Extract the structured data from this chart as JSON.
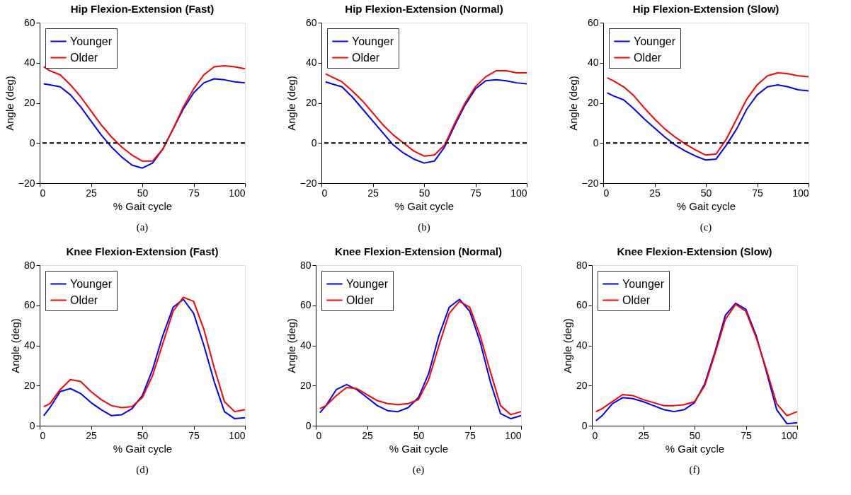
{
  "chart_data": [
    {
      "type": "line",
      "title": "Hip Flexion-Extension (Fast)",
      "xlabel": "% Gait cycle",
      "ylabel": "Angle (deg)",
      "annotations": [
        "(a)"
      ],
      "legend": "top left",
      "grid": false,
      "line_style": "solid",
      "x": [
        2,
        5,
        10,
        15,
        20,
        25,
        30,
        35,
        40,
        45,
        50,
        55,
        60,
        65,
        70,
        75,
        80,
        85,
        90,
        95,
        100
      ],
      "xlim": [
        0,
        100
      ],
      "xticks": [
        0,
        25,
        50,
        75,
        100
      ],
      "ylim": [
        -20,
        60
      ],
      "yticks": [
        -20,
        0,
        20,
        40,
        60
      ],
      "ref_lines": [
        {
          "axis": "y",
          "value": 0,
          "color": "#000000",
          "line_style": "dashed"
        }
      ],
      "series": [
        {
          "name": "Younger",
          "color": "#0000ff",
          "values": [
            29.5,
            29,
            28,
            24,
            18,
            11,
            4,
            -2,
            -7,
            -11,
            -12.5,
            -10,
            -3,
            7,
            17,
            25,
            30,
            32,
            31.5,
            30.5,
            30
          ]
        },
        {
          "name": "Older",
          "color": "#ff0000",
          "values": [
            38,
            36,
            34,
            29,
            23,
            16,
            9,
            3,
            -2,
            -6,
            -9,
            -9,
            -3,
            7,
            18,
            27,
            34,
            38,
            38.5,
            38,
            37
          ]
        }
      ]
    },
    {
      "type": "line",
      "title": "Hip Flexion-Extension (Normal)",
      "xlabel": "% Gait cycle",
      "ylabel": "Angle (deg)",
      "annotations": [
        "(b)"
      ],
      "legend": "top left",
      "grid": false,
      "line_style": "solid",
      "x": [
        2,
        5,
        10,
        15,
        20,
        25,
        30,
        35,
        40,
        45,
        50,
        55,
        60,
        65,
        70,
        75,
        80,
        85,
        90,
        95,
        100
      ],
      "xlim": [
        0,
        100
      ],
      "xticks": [
        0,
        25,
        50,
        75,
        100
      ],
      "ylim": [
        -20,
        60
      ],
      "yticks": [
        -20,
        0,
        20,
        40,
        60
      ],
      "ref_lines": [
        {
          "axis": "y",
          "value": 0,
          "color": "#000000",
          "line_style": "dashed"
        }
      ],
      "series": [
        {
          "name": "Younger",
          "color": "#0000ff",
          "values": [
            30.5,
            29.5,
            28,
            23,
            17,
            11,
            5,
            -1,
            -5,
            -8,
            -10,
            -9,
            -2,
            9,
            19,
            27,
            31,
            31.5,
            31,
            30,
            29.5
          ]
        },
        {
          "name": "Older",
          "color": "#ff0000",
          "values": [
            34.5,
            33,
            30.5,
            26,
            21,
            15,
            9,
            4,
            0,
            -4,
            -6.5,
            -6,
            -1,
            10,
            20,
            28,
            33,
            36,
            36,
            35,
            35
          ]
        }
      ]
    },
    {
      "type": "line",
      "title": "Hip Flexion-Extension (Slow)",
      "xlabel": "% Gait cycle",
      "ylabel": "Angle (deg)",
      "annotations": [
        "(c)"
      ],
      "legend": "top left",
      "grid": false,
      "line_style": "solid",
      "x": [
        2,
        5,
        10,
        15,
        20,
        25,
        30,
        35,
        40,
        45,
        50,
        55,
        60,
        65,
        70,
        75,
        80,
        85,
        90,
        95,
        100
      ],
      "xlim": [
        0,
        100
      ],
      "xticks": [
        0,
        25,
        50,
        75,
        100
      ],
      "ylim": [
        -20,
        60
      ],
      "yticks": [
        -20,
        0,
        20,
        40,
        60
      ],
      "ref_lines": [
        {
          "axis": "y",
          "value": 0,
          "color": "#000000",
          "line_style": "dashed"
        }
      ],
      "series": [
        {
          "name": "Younger",
          "color": "#0000ff",
          "values": [
            25,
            23.5,
            21.5,
            17,
            12,
            7.5,
            3,
            -1,
            -4,
            -6.5,
            -8.5,
            -8,
            -1,
            7,
            17,
            24,
            28,
            29,
            28,
            26.5,
            26
          ]
        },
        {
          "name": "Older",
          "color": "#ff0000",
          "values": [
            32.5,
            31,
            28,
            23.5,
            17.5,
            12,
            7,
            3,
            -0.5,
            -3.5,
            -6,
            -5.5,
            2,
            12,
            22,
            29,
            33.5,
            35,
            34.5,
            33.5,
            33
          ]
        }
      ]
    },
    {
      "type": "line",
      "title": "Knee Flexion-Extension (Fast)",
      "xlabel": "% Gait cycle",
      "ylabel": "Angle (deg)",
      "annotations": [
        "(d)"
      ],
      "legend": "top left",
      "grid": false,
      "line_style": "solid",
      "x": [
        2,
        5,
        10,
        15,
        20,
        25,
        30,
        35,
        40,
        45,
        50,
        55,
        60,
        65,
        70,
        75,
        80,
        85,
        90,
        95,
        100
      ],
      "xlim": [
        0,
        100
      ],
      "xticks": [
        0,
        25,
        50,
        75,
        100
      ],
      "ylim": [
        0,
        80
      ],
      "yticks": [
        0,
        20,
        40,
        60,
        80
      ],
      "series": [
        {
          "name": "Younger",
          "color": "#0000ff",
          "values": [
            5,
            9,
            17,
            18.5,
            16,
            11.5,
            8,
            5,
            5.5,
            8.5,
            15,
            28,
            45,
            59,
            63,
            56,
            40,
            22,
            7,
            3.5,
            4
          ]
        },
        {
          "name": "Older",
          "color": "#ff0000",
          "values": [
            9.5,
            11,
            18,
            23,
            22,
            17,
            13,
            10,
            9,
            9.5,
            14,
            25,
            41,
            57,
            64,
            62,
            48,
            29,
            12,
            7,
            8
          ]
        }
      ]
    },
    {
      "type": "line",
      "title": "Knee Flexion-Extension (Normal)",
      "xlabel": "% Gait cycle",
      "ylabel": "Angle (deg)",
      "annotations": [
        "(e)"
      ],
      "legend": "top left",
      "grid": false,
      "line_style": "solid",
      "x": [
        2,
        5,
        10,
        15,
        20,
        25,
        30,
        35,
        40,
        45,
        50,
        55,
        60,
        65,
        70,
        75,
        80,
        85,
        90,
        95,
        100
      ],
      "xlim": [
        0,
        100
      ],
      "xticks": [
        0,
        25,
        50,
        75,
        100
      ],
      "ylim": [
        0,
        80
      ],
      "yticks": [
        0,
        20,
        40,
        60,
        80
      ],
      "series": [
        {
          "name": "Younger",
          "color": "#0000ff",
          "values": [
            6.5,
            10,
            18,
            20.5,
            18,
            14,
            10,
            7.5,
            7,
            9,
            14,
            26,
            45,
            59,
            63,
            57,
            42,
            22,
            6,
            3.5,
            5
          ]
        },
        {
          "name": "Older",
          "color": "#ff0000",
          "values": [
            8.5,
            10,
            15,
            19,
            18.5,
            15.5,
            12.5,
            11,
            10.5,
            11,
            13,
            23,
            40,
            56,
            62,
            59,
            45,
            27,
            10,
            5.5,
            7
          ]
        }
      ]
    },
    {
      "type": "line",
      "title": "Knee Flexion-Extension (Slow)",
      "xlabel": "% Gait cycle",
      "ylabel": "Angle (deg)",
      "annotations": [
        "(f)"
      ],
      "legend": "top left",
      "grid": false,
      "line_style": "solid",
      "x": [
        2,
        5,
        10,
        15,
        20,
        25,
        30,
        35,
        40,
        45,
        50,
        55,
        60,
        65,
        70,
        75,
        80,
        85,
        90,
        95,
        100
      ],
      "xlim": [
        0,
        100
      ],
      "xticks": [
        0,
        25,
        50,
        75,
        100
      ],
      "ylim": [
        0,
        80
      ],
      "yticks": [
        0,
        20,
        40,
        60,
        80
      ],
      "series": [
        {
          "name": "Younger",
          "color": "#0000ff",
          "values": [
            2.5,
            5,
            11,
            14,
            13.5,
            12,
            10,
            8,
            7,
            8,
            11.5,
            21,
            37,
            55,
            61,
            58,
            45,
            27,
            8,
            1,
            1.5
          ]
        },
        {
          "name": "Older",
          "color": "#ff0000",
          "values": [
            7,
            8.5,
            12,
            15.5,
            15,
            13,
            11.5,
            10,
            10,
            10.5,
            12,
            20,
            36,
            53,
            60.5,
            57,
            44,
            28,
            11,
            5,
            7
          ]
        }
      ]
    }
  ]
}
